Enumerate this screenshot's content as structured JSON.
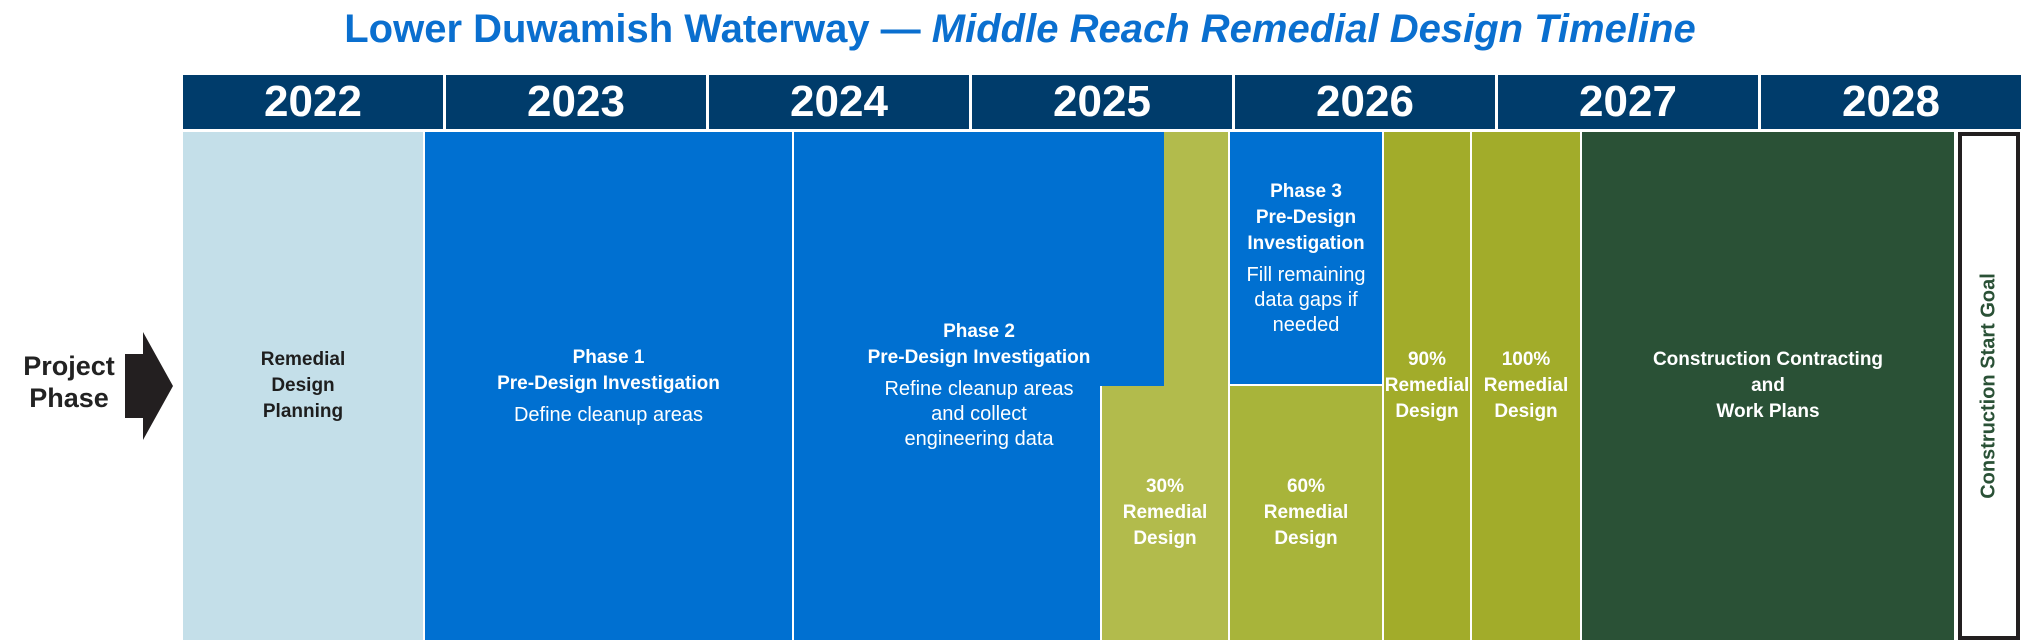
{
  "title": {
    "main": "Lower Duwamish Waterway — ",
    "emphasis": "Middle Reach Remedial Design Timeline"
  },
  "years": [
    "2022",
    "2023",
    "2024",
    "2025",
    "2026",
    "2027",
    "2028"
  ],
  "side_label": {
    "line1": "Project",
    "line2": "Phase"
  },
  "phases": {
    "planning": {
      "title": "Remedial\nDesign\nPlanning",
      "color": "#c4dfe9"
    },
    "phase1": {
      "title": "Phase 1\nPre-Design Investigation",
      "desc": "Define cleanup areas",
      "color": "#0070d1"
    },
    "phase2": {
      "title": "Phase 2\nPre-Design Investigation",
      "desc": "Refine cleanup areas\nand collect\nengineering data",
      "color": "#0070d1"
    },
    "design30": {
      "title": "30%\nRemedial\nDesign",
      "color": "#b2bb4c"
    },
    "phase3": {
      "title": "Phase 3\nPre-Design\nInvestigation",
      "desc": "Fill remaining\ndata gaps if\nneeded",
      "color": "#0070d1"
    },
    "design60": {
      "title": "60%\nRemedial\nDesign",
      "color": "#a8b43a"
    },
    "design90": {
      "title": "90%\nRemedial\nDesign",
      "color": "#a2ac2a"
    },
    "design100": {
      "title": "100%\nRemedial\nDesign",
      "color": "#a2ac2a"
    },
    "construction": {
      "title": "Construction Contracting\nand\nWork Plans",
      "color": "#2a5136"
    },
    "goal": {
      "title": "Construction Start Goal"
    }
  },
  "colors": {
    "title": "#0a6fcf",
    "year_bar": "#003c6b",
    "arrow": "#231f20"
  }
}
